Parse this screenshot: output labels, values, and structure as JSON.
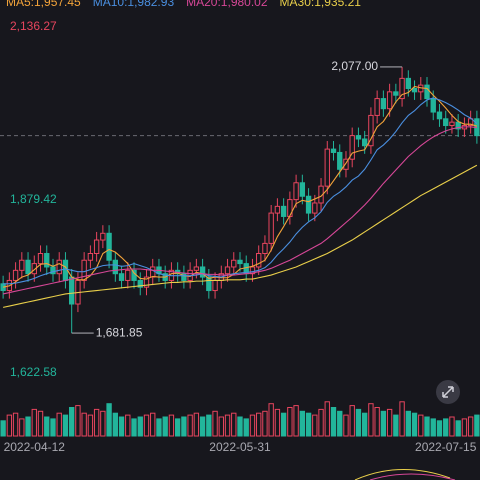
{
  "chart_data": {
    "type": "candlestick",
    "categories": [
      null,
      null,
      null,
      null,
      null,
      "2022-04-12",
      null,
      null,
      null,
      null,
      null,
      null,
      null,
      null,
      null,
      null,
      null,
      null,
      null,
      null,
      null,
      null,
      null,
      null,
      null,
      null,
      null,
      null,
      null,
      null,
      null,
      null,
      null,
      null,
      null,
      null,
      null,
      null,
      "2022-05-31",
      null,
      null,
      null,
      null,
      null,
      null,
      null,
      null,
      null,
      null,
      null,
      null,
      null,
      null,
      null,
      null,
      null,
      null,
      null,
      null,
      null,
      null,
      null,
      null,
      null,
      null,
      null,
      null,
      null,
      null,
      null,
      null,
      "2022-07-15",
      null,
      null,
      null,
      null,
      null
    ],
    "open": [
      1755,
      1745,
      1760,
      1775,
      1790,
      1770,
      1785,
      1800,
      1780,
      1770,
      1790,
      1765,
      1725,
      1760,
      1790,
      1800,
      1820,
      1830,
      1790,
      1770,
      1760,
      1775,
      1760,
      1750,
      1765,
      1780,
      1770,
      1760,
      1775,
      1770,
      1760,
      1775,
      1780,
      1765,
      1745,
      1760,
      1770,
      1780,
      1790,
      1785,
      1770,
      1780,
      1800,
      1815,
      1860,
      1870,
      1855,
      1880,
      1905,
      1885,
      1860,
      1875,
      1900,
      1955,
      1950,
      1925,
      1940,
      1975,
      1970,
      1960,
      2005,
      2030,
      2015,
      2040,
      2030,
      2060,
      2045,
      2040,
      2050,
      2030,
      2010,
      2000,
      1990,
      1995,
      1985,
      1990,
      2000
    ],
    "high": [
      1767,
      1772,
      1787,
      1802,
      1802,
      1797,
      1812,
      1812,
      1792,
      1802,
      1802,
      1777,
      1772,
      1802,
      1812,
      1832,
      1842,
      1842,
      1802,
      1782,
      1787,
      1787,
      1772,
      1777,
      1792,
      1792,
      1782,
      1787,
      1787,
      1782,
      1787,
      1792,
      1792,
      1777,
      1772,
      1782,
      1792,
      1802,
      1802,
      1797,
      1792,
      1812,
      1827,
      1872,
      1882,
      1882,
      1892,
      1917,
      1917,
      1897,
      1887,
      1912,
      1967,
      1967,
      1962,
      1952,
      1987,
      1987,
      1982,
      2017,
      2042,
      2042,
      2052,
      2052,
      2077.0,
      2072,
      2057,
      2062,
      2062,
      2042,
      2022,
      2012,
      2007,
      2007,
      2002,
      2012,
      2012
    ],
    "low": [
      1733,
      1733,
      1748,
      1763,
      1758,
      1758,
      1773,
      1768,
      1758,
      1758,
      1748,
      1681.85,
      1713,
      1748,
      1778,
      1788,
      1808,
      1778,
      1758,
      1748,
      1748,
      1748,
      1738,
      1738,
      1753,
      1758,
      1748,
      1748,
      1758,
      1748,
      1748,
      1763,
      1753,
      1733,
      1733,
      1748,
      1758,
      1768,
      1773,
      1758,
      1758,
      1768,
      1788,
      1803,
      1848,
      1843,
      1843,
      1868,
      1873,
      1848,
      1848,
      1863,
      1888,
      1938,
      1913,
      1913,
      1928,
      1958,
      1948,
      1948,
      1993,
      2003,
      2003,
      2023,
      2018,
      2033,
      2028,
      2028,
      2018,
      1998,
      1988,
      1978,
      1978,
      1973,
      1973,
      1978,
      1963
    ],
    "close": [
      1745,
      1760,
      1775,
      1790,
      1770,
      1785,
      1800,
      1780,
      1770,
      1790,
      1760,
      1725,
      1760,
      1790,
      1800,
      1820,
      1830,
      1790,
      1770,
      1760,
      1775,
      1760,
      1750,
      1765,
      1780,
      1770,
      1760,
      1775,
      1770,
      1760,
      1775,
      1780,
      1765,
      1745,
      1760,
      1770,
      1780,
      1790,
      1785,
      1770,
      1780,
      1800,
      1815,
      1860,
      1870,
      1855,
      1880,
      1905,
      1885,
      1860,
      1875,
      1900,
      1955,
      1950,
      1925,
      1940,
      1975,
      1970,
      1960,
      2005,
      2030,
      2015,
      2040,
      2035,
      2060,
      2045,
      2040,
      2050,
      2030,
      2010,
      2000,
      1990,
      1995,
      1985,
      1990,
      2000,
      1975
    ],
    "up_color": "#e8455e",
    "down_color": "#22b59b",
    "ylim": [
      1612.19,
      2176.36
    ],
    "yticks": [
      {
        "value": 2136.27,
        "label": "2,136.27"
      },
      {
        "value": 1879.42,
        "label": "1,879.42"
      },
      {
        "value": 1622.58,
        "label": "1,622.58"
      }
    ],
    "ytick_colors": [
      "#e8455e",
      "#22b59b",
      "#22b59b"
    ],
    "series": [
      {
        "name": "MA5:1,957.45",
        "color": "#f2a33a",
        "values": [
          1750,
          1752,
          1758,
          1765,
          1768,
          1776,
          1784,
          1785,
          1781,
          1785,
          1780,
          1765,
          1761,
          1761,
          1767,
          1779,
          1800,
          1806,
          1802,
          1794,
          1785,
          1771,
          1763,
          1762,
          1766,
          1765,
          1765,
          1770,
          1771,
          1767,
          1766,
          1772,
          1770,
          1763,
          1765,
          1764,
          1764,
          1769,
          1777,
          1779,
          1781,
          1785,
          1790,
          1805,
          1825,
          1840,
          1856,
          1874,
          1879,
          1877,
          1881,
          1885,
          1895,
          1908,
          1921,
          1934,
          1949,
          1952,
          1954,
          1970,
          1988,
          1996,
          2010,
          2025,
          2036,
          2039,
          2048,
          2046,
          2045,
          2035,
          2026,
          2016,
          2005,
          1996,
          1992,
          1992,
          1989
        ]
      },
      {
        "name": "MA10:1,982.93",
        "color": "#4a8fe0",
        "values": [
          1755,
          1755,
          1756,
          1758,
          1760,
          1763,
          1767,
          1770,
          1773,
          1775,
          1777,
          1775,
          1773,
          1773,
          1776,
          1779,
          1782,
          1783,
          1783,
          1781,
          1782,
          1785,
          1782,
          1779,
          1775,
          1770,
          1768,
          1767,
          1767,
          1767,
          1767,
          1768,
          1770,
          1767,
          1766,
          1765,
          1768,
          1770,
          1771,
          1772,
          1773,
          1775,
          1779,
          1787,
          1798,
          1807,
          1817,
          1829,
          1839,
          1847,
          1853,
          1862,
          1876,
          1885,
          1891,
          1899,
          1909,
          1915,
          1925,
          1939,
          1954,
          1961,
          1970,
          1981,
          1994,
          2005,
          2012,
          2021,
          2028,
          2031,
          2028,
          2024,
          2019,
          2013,
          2006,
          2001,
          1993
        ]
      },
      {
        "name": "MA20:1,980.02",
        "color": "#d64797",
        "values": [
          1740,
          1742,
          1744,
          1746,
          1748,
          1750,
          1752,
          1754,
          1756,
          1758,
          1760,
          1762,
          1764,
          1766,
          1768,
          1770,
          1772,
          1774,
          1775,
          1776,
          1777,
          1777,
          1777,
          1776,
          1775,
          1775,
          1774,
          1773,
          1772,
          1771,
          1770,
          1770,
          1770,
          1769,
          1769,
          1768,
          1768,
          1768,
          1769,
          1770,
          1771,
          1773,
          1775,
          1778,
          1782,
          1786,
          1790,
          1795,
          1800,
          1805,
          1810,
          1815,
          1822,
          1830,
          1838,
          1846,
          1854,
          1863,
          1872,
          1882,
          1893,
          1904,
          1914,
          1924,
          1934,
          1944,
          1952,
          1960,
          1967,
          1973,
          1978,
          1982,
          1985,
          1987,
          1988,
          1988,
          1987
        ]
      },
      {
        "name": "MA30:1,935.21",
        "color": "#e9cf4a",
        "values": [
          1720,
          1722,
          1724,
          1726,
          1728,
          1730,
          1732,
          1734,
          1736,
          1738,
          1740,
          1741,
          1742,
          1743,
          1744,
          1745,
          1746,
          1747,
          1748,
          1749,
          1750,
          1751,
          1752,
          1753,
          1754,
          1755,
          1756,
          1757,
          1757,
          1758,
          1758,
          1759,
          1759,
          1760,
          1760,
          1760,
          1761,
          1761,
          1761,
          1762,
          1762,
          1764,
          1766,
          1768,
          1771,
          1774,
          1777,
          1780,
          1784,
          1788,
          1792,
          1796,
          1800,
          1805,
          1810,
          1815,
          1820,
          1826,
          1832,
          1838,
          1844,
          1850,
          1856,
          1862,
          1868,
          1874,
          1880,
          1886,
          1891,
          1896,
          1901,
          1906,
          1911,
          1916,
          1921,
          1926,
          1931
        ]
      }
    ],
    "volume": {
      "ylim": [
        0,
        100
      ],
      "values": [
        40,
        55,
        60,
        45,
        50,
        70,
        65,
        50,
        45,
        60,
        55,
        75,
        80,
        60,
        55,
        70,
        65,
        85,
        60,
        50,
        55,
        45,
        50,
        55,
        60,
        45,
        50,
        55,
        45,
        50,
        55,
        60,
        50,
        55,
        65,
        50,
        55,
        60,
        50,
        45,
        55,
        60,
        65,
        85,
        70,
        60,
        75,
        80,
        65,
        60,
        55,
        70,
        90,
        75,
        65,
        55,
        80,
        70,
        60,
        85,
        75,
        65,
        70,
        55,
        90,
        65,
        60,
        55,
        50,
        45,
        40,
        45,
        50,
        40,
        45,
        50,
        55
      ]
    },
    "annotations": [
      {
        "index": 64,
        "value": 2077.0,
        "label": "2,077.00"
      },
      {
        "index": 11,
        "value": 1681.85,
        "label": "1,681.85"
      }
    ]
  }
}
